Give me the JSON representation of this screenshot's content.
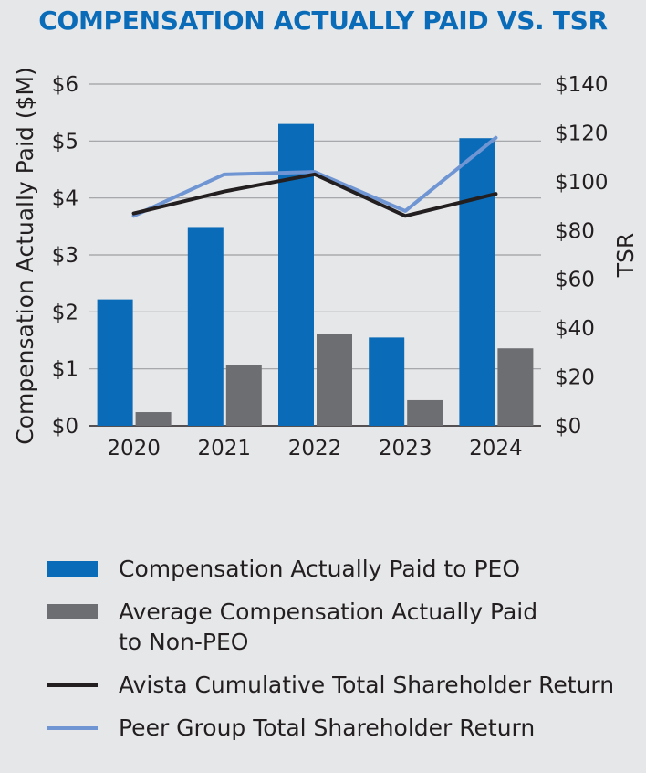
{
  "chart_data": {
    "type": "bar",
    "title": "COMPENSATION ACTUALLY PAID VS. TSR",
    "categories": [
      "2020",
      "2021",
      "2022",
      "2023",
      "2024"
    ],
    "ylabel": "Compensation Actually Paid ($M)",
    "y2label": "TSR",
    "ylim": [
      0,
      6
    ],
    "y2lim": [
      0,
      140
    ],
    "yticks": [
      "$0",
      "$1",
      "$2",
      "$3",
      "$4",
      "$5",
      "$6"
    ],
    "y2ticks": [
      "$0",
      "$20",
      "$40",
      "$60",
      "$80",
      "$100",
      "$120",
      "$140"
    ],
    "grid": true,
    "legend_position": "bottom",
    "series": [
      {
        "name": "Compensation Actually Paid to PEO",
        "kind": "bar",
        "axis": "left",
        "color": "#0a6cb8",
        "values": [
          2.22,
          3.49,
          5.3,
          1.55,
          5.05
        ]
      },
      {
        "name": "Average Compensation Actually Paid to Non-PEO",
        "kind": "bar",
        "axis": "left",
        "color": "#6d6e71",
        "values": [
          0.24,
          1.07,
          1.61,
          0.45,
          1.36
        ]
      },
      {
        "name": "Avista Cumulative Total Shareholder Return",
        "kind": "line",
        "axis": "right",
        "color": "#231f20",
        "values": [
          87,
          96,
          103,
          86,
          95
        ]
      },
      {
        "name": "Peer Group Total Shareholder Return",
        "kind": "line",
        "axis": "right",
        "color": "#6f95d3",
        "values": [
          86,
          103,
          104,
          88,
          118
        ]
      }
    ]
  },
  "legend": {
    "items": [
      {
        "line1": "Compensation Actually Paid to PEO",
        "line2": ""
      },
      {
        "line1": "Average Compensation Actually Paid",
        "line2": "to Non-PEO"
      },
      {
        "line1": "Avista Cumulative Total Shareholder Return",
        "line2": ""
      },
      {
        "line1": "Peer Group Total Shareholder Return",
        "line2": ""
      }
    ]
  }
}
